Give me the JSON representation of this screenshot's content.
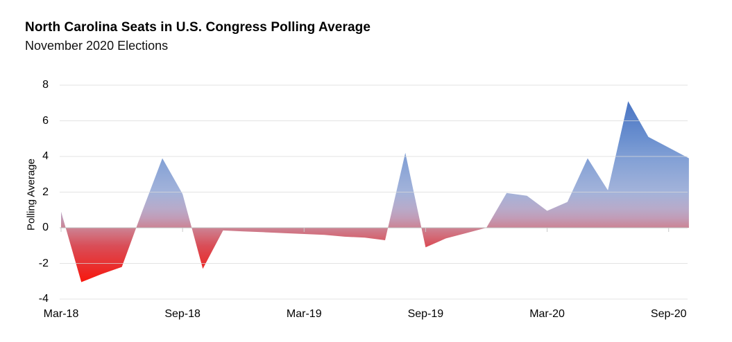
{
  "header": {
    "title": "North Carolina Seats in U.S. Congress Polling Average",
    "subtitle": "November 2020 Elections"
  },
  "colors": {
    "background": "#ffffff",
    "gridline": "#d9d9d9",
    "zero_axis": "#bfbfbf",
    "tick_mark": "#c9c9c9",
    "text": "#000000",
    "positive_peak_blue": "#4a75c4",
    "negative_peak_red": "#f8170d"
  },
  "chart_data": {
    "type": "area",
    "title": "North Carolina Seats in U.S. Congress Polling Average",
    "subtitle": "November 2020 Elections",
    "xlabel": "",
    "ylabel": "Polling Average",
    "ylim": [
      -4,
      8
    ],
    "yticks": [
      8,
      6,
      4,
      2,
      0,
      -2,
      -4
    ],
    "xtick_labels": [
      "Mar-18",
      "Sep-18",
      "Mar-19",
      "Sep-19",
      "Mar-20",
      "Sep-20"
    ],
    "xtick_month_indices": [
      0,
      6,
      12,
      18,
      24,
      30
    ],
    "grid": true,
    "legend": false,
    "x": [
      "Mar-18",
      "Apr-18",
      "May-18",
      "Jun-18",
      "Jul-18",
      "Aug-18",
      "Sep-18",
      "Oct-18",
      "Nov-18",
      "Dec-18",
      "Jan-19",
      "Feb-19",
      "Mar-19",
      "Apr-19",
      "May-19",
      "Jun-19",
      "Jul-19",
      "Aug-19",
      "Sep-19",
      "Oct-19",
      "Nov-19",
      "Dec-19",
      "Jan-20",
      "Feb-20",
      "Mar-20",
      "Apr-20",
      "May-20",
      "Jun-20",
      "Jul-20",
      "Aug-20",
      "Sep-20",
      "Oct-20"
    ],
    "values": [
      0.9,
      -3.05,
      -2.6,
      -2.2,
      0.9,
      3.9,
      1.9,
      -2.3,
      -0.15,
      -0.2,
      -0.25,
      -0.3,
      -0.35,
      -0.4,
      -0.5,
      -0.55,
      -0.7,
      4.2,
      -1.1,
      -0.6,
      -0.3,
      0.0,
      1.95,
      1.8,
      0.95,
      1.45,
      3.9,
      2.1,
      7.1,
      5.1,
      4.5,
      3.9
    ],
    "fill_gradient_stops": [
      {
        "value": 7.1,
        "color": "#4a75c4"
      },
      {
        "value": 5.0,
        "color": "#6b90cf"
      },
      {
        "value": 3.9,
        "color": "#82a0d5"
      },
      {
        "value": 2.0,
        "color": "#a3b3da"
      },
      {
        "value": 1.05,
        "color": "#b8aac9"
      },
      {
        "value": 0.55,
        "color": "#c19cb7"
      },
      {
        "value": 0.0,
        "color": "#cc8494"
      },
      {
        "value": -1.0,
        "color": "#d94e58"
      },
      {
        "value": -2.2,
        "color": "#ea2d2c"
      },
      {
        "value": -3.05,
        "color": "#f8170d"
      }
    ]
  }
}
